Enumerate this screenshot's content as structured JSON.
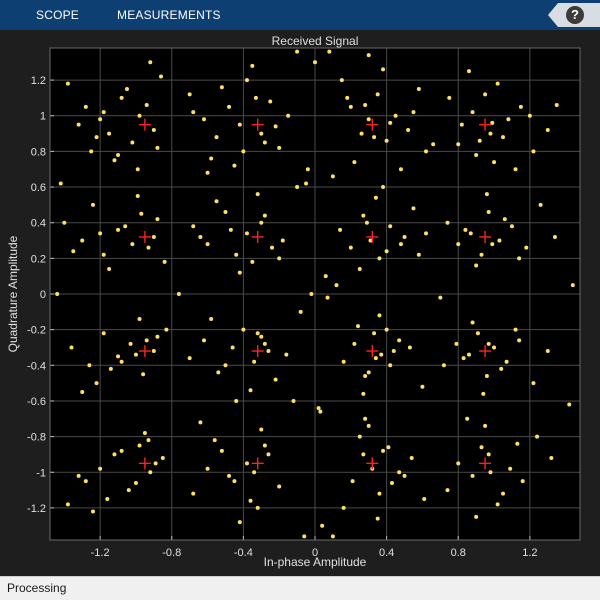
{
  "toolbar": {
    "tabs": [
      {
        "label": "SCOPE"
      },
      {
        "label": "MEASUREMENTS"
      }
    ],
    "help_label": "?",
    "help_icon": "help-icon"
  },
  "status": {
    "text": "Processing"
  },
  "colors": {
    "toolbar_bg": "#0e3f73",
    "plot_bg": "#000000",
    "figure_bg": "#1e1e1e",
    "grid": "#4a4a4a",
    "axis_text": "#e0e0e0",
    "points": "#ffe066",
    "reference": "#ff2020"
  },
  "chart_data": {
    "type": "scatter",
    "title": "Received Signal",
    "xlabel": "In-phase Amplitude",
    "ylabel": "Quadrature Amplitude",
    "xlim": [
      -1.48,
      1.48
    ],
    "ylim": [
      -1.38,
      1.38
    ],
    "xticks": [
      -1.2,
      -0.8,
      -0.4,
      0,
      0.4,
      0.8,
      1.2
    ],
    "yticks": [
      -1.2,
      -1,
      -0.8,
      -0.6,
      -0.4,
      -0.2,
      0,
      0.2,
      0.4,
      0.6,
      0.8,
      1,
      1.2
    ],
    "grid": true,
    "series": [
      {
        "role": "reference",
        "marker": "plus",
        "x": [
          -0.95,
          -0.32,
          0.32,
          0.95,
          -0.95,
          -0.32,
          0.32,
          0.95,
          -0.95,
          -0.32,
          0.32,
          0.95,
          -0.95,
          -0.32,
          0.32,
          0.95
        ],
        "y": [
          0.95,
          0.95,
          0.95,
          0.95,
          0.32,
          0.32,
          0.32,
          0.32,
          -0.32,
          -0.32,
          -0.32,
          -0.32,
          -0.95,
          -0.95,
          -0.95,
          -0.95
        ]
      },
      {
        "role": "received",
        "marker": "dot",
        "x": [
          -1.38,
          -1.28,
          -1.2,
          -1.15,
          -1.08,
          -1.02,
          -0.98,
          -0.9,
          -0.86,
          -1.1,
          -1.22,
          -0.94,
          -1.32,
          -1.05,
          -0.88,
          -1.18,
          -0.99,
          -1.25,
          -0.92,
          -1.12,
          -0.7,
          -0.62,
          -0.55,
          -0.48,
          -0.42,
          -0.38,
          -0.3,
          -0.25,
          -0.2,
          -0.15,
          -0.58,
          -0.35,
          -0.45,
          -0.28,
          -0.68,
          -0.52,
          -0.22,
          -0.4,
          -0.33,
          -0.6,
          0.15,
          0.2,
          0.26,
          0.3,
          0.35,
          0.4,
          0.45,
          0.52,
          0.58,
          0.62,
          0.22,
          0.38,
          0.28,
          0.48,
          0.33,
          0.55,
          0.42,
          0.18,
          0.66,
          0.3,
          0.75,
          0.82,
          0.88,
          0.92,
          0.98,
          1.02,
          1.08,
          1.15,
          1.22,
          1.3,
          0.86,
          1.0,
          0.95,
          1.12,
          0.8,
          1.2,
          0.9,
          1.05,
          1.35,
          0.99,
          -1.4,
          -1.3,
          -1.18,
          -1.1,
          -1.02,
          -0.97,
          -0.9,
          -0.84,
          -1.24,
          -0.93,
          -1.06,
          -1.15,
          -0.88,
          -1.35,
          -0.99,
          -1.2,
          -0.68,
          -0.6,
          -0.5,
          -0.44,
          -0.38,
          -0.3,
          -0.24,
          -0.18,
          -0.55,
          -0.35,
          -0.28,
          -0.42,
          -0.64,
          -0.32,
          -0.47,
          -0.2,
          0.14,
          0.2,
          0.27,
          0.31,
          0.36,
          0.42,
          0.48,
          0.55,
          0.62,
          0.25,
          0.34,
          0.4,
          0.29,
          0.5,
          0.38,
          0.58,
          0.74,
          0.8,
          0.87,
          0.93,
          0.97,
          1.03,
          1.1,
          1.18,
          1.26,
          1.34,
          0.9,
          0.96,
          1.06,
          0.84,
          1.14,
          0.99,
          -1.36,
          -1.26,
          -1.18,
          -1.1,
          -1.03,
          -0.96,
          -0.9,
          -0.83,
          -1.22,
          -0.94,
          -1.08,
          -0.98,
          -1.14,
          -0.88,
          -1.3,
          -1.0,
          -0.7,
          -0.62,
          -0.54,
          -0.46,
          -0.4,
          -0.34,
          -0.28,
          -0.22,
          -0.16,
          -0.58,
          -0.36,
          -0.3,
          -0.5,
          -0.26,
          -0.44,
          -0.32,
          0.16,
          0.22,
          0.28,
          0.33,
          0.37,
          0.42,
          0.47,
          0.53,
          0.6,
          0.24,
          0.3,
          0.36,
          0.44,
          0.27,
          0.34,
          0.4,
          0.72,
          0.79,
          0.86,
          0.91,
          0.96,
          1.0,
          1.07,
          1.14,
          1.22,
          1.3,
          0.88,
          0.94,
          1.04,
          0.83,
          1.12,
          0.97,
          -1.38,
          -1.28,
          -1.2,
          -1.12,
          -1.04,
          -0.98,
          -0.92,
          -0.85,
          -1.24,
          -0.95,
          -1.08,
          -1.0,
          -0.89,
          -1.16,
          -0.93,
          -1.32,
          -0.68,
          -0.6,
          -0.52,
          -0.45,
          -0.38,
          -0.32,
          -0.26,
          -0.2,
          -0.56,
          -0.34,
          -0.3,
          -0.42,
          -0.64,
          -0.28,
          -0.48,
          -0.36,
          0.16,
          0.21,
          0.27,
          0.32,
          0.36,
          0.41,
          0.47,
          0.54,
          0.61,
          0.25,
          0.3,
          0.35,
          0.43,
          0.28,
          0.38,
          0.5,
          0.74,
          0.8,
          0.88,
          0.93,
          0.97,
          1.02,
          1.09,
          1.16,
          1.24,
          1.32,
          0.9,
          0.95,
          1.05,
          0.85,
          1.13,
          0.98,
          -0.05,
          0.02,
          0.06,
          -0.08,
          0.1,
          -0.12,
          0.0,
          0.04,
          -0.02,
          0.08,
          -0.06,
          0.12,
          0.03,
          -0.1,
          0.07,
          -0.04,
          -1.42,
          1.42,
          -1.44,
          1.44,
          -0.76,
          0.7,
          -0.1,
          0.1
        ],
        "y": [
          1.18,
          1.05,
          0.98,
          0.9,
          1.1,
          0.85,
          1.0,
          0.92,
          1.22,
          0.78,
          0.88,
          1.06,
          0.95,
          1.15,
          0.82,
          1.02,
          0.7,
          0.8,
          1.3,
          0.75,
          1.12,
          0.98,
          0.88,
          1.05,
          0.95,
          1.2,
          0.9,
          1.08,
          0.82,
          1.0,
          0.76,
          1.28,
          0.72,
          0.85,
          1.02,
          1.16,
          0.94,
          0.8,
          1.1,
          0.68,
          1.2,
          1.05,
          0.9,
          0.98,
          1.12,
          0.86,
          1.0,
          0.92,
          1.15,
          0.8,
          0.74,
          1.26,
          1.06,
          0.7,
          0.88,
          1.02,
          0.96,
          1.1,
          0.84,
          1.34,
          1.1,
          0.95,
          1.02,
          0.86,
          0.9,
          1.18,
          0.98,
          1.05,
          0.8,
          0.92,
          1.25,
          0.74,
          1.12,
          0.7,
          0.84,
          1.0,
          0.78,
          0.88,
          1.06,
          0.96,
          0.4,
          0.3,
          0.22,
          0.36,
          0.28,
          0.45,
          0.32,
          0.18,
          0.5,
          0.26,
          0.38,
          0.14,
          0.42,
          0.24,
          0.55,
          0.34,
          0.38,
          0.28,
          0.46,
          0.22,
          0.34,
          0.4,
          0.26,
          0.3,
          0.52,
          0.18,
          0.44,
          0.12,
          0.32,
          0.56,
          0.36,
          0.2,
          0.36,
          0.26,
          0.44,
          0.3,
          0.2,
          0.38,
          0.28,
          0.48,
          0.34,
          0.14,
          0.54,
          0.24,
          0.4,
          0.32,
          0.6,
          0.22,
          0.4,
          0.28,
          0.34,
          0.22,
          0.46,
          0.3,
          0.38,
          0.26,
          0.5,
          0.32,
          0.16,
          0.56,
          0.42,
          0.36,
          0.2,
          0.28,
          -0.3,
          -0.4,
          -0.22,
          -0.35,
          -0.28,
          -0.45,
          -0.32,
          -0.2,
          -0.5,
          -0.26,
          -0.38,
          -0.14,
          -0.42,
          -0.24,
          -0.55,
          -0.34,
          -0.36,
          -0.26,
          -0.44,
          -0.3,
          -0.2,
          -0.38,
          -0.28,
          -0.48,
          -0.34,
          -0.14,
          -0.54,
          -0.24,
          -0.4,
          -0.32,
          -0.6,
          -0.22,
          -0.38,
          -0.28,
          -0.46,
          -0.22,
          -0.34,
          -0.4,
          -0.26,
          -0.3,
          -0.52,
          -0.18,
          -0.44,
          -0.12,
          -0.32,
          -0.56,
          -0.36,
          -0.2,
          -0.4,
          -0.28,
          -0.34,
          -0.22,
          -0.46,
          -0.3,
          -0.38,
          -0.26,
          -0.5,
          -0.32,
          -0.16,
          -0.56,
          -0.42,
          -0.36,
          -0.2,
          -0.28,
          -1.18,
          -1.05,
          -0.98,
          -0.9,
          -1.1,
          -0.85,
          -1.0,
          -0.92,
          -1.22,
          -0.78,
          -0.88,
          -1.06,
          -0.95,
          -1.15,
          -0.82,
          -1.02,
          -1.12,
          -0.98,
          -0.88,
          -1.05,
          -0.95,
          -1.2,
          -0.9,
          -1.08,
          -0.82,
          -1.0,
          -0.76,
          -1.28,
          -0.72,
          -0.85,
          -1.02,
          -1.16,
          -1.2,
          -1.05,
          -0.9,
          -0.98,
          -1.12,
          -0.86,
          -1.0,
          -0.92,
          -1.15,
          -0.8,
          -0.74,
          -1.26,
          -1.06,
          -0.7,
          -0.88,
          -1.02,
          -1.1,
          -0.95,
          -1.02,
          -0.86,
          -0.9,
          -1.18,
          -0.98,
          -1.05,
          -0.8,
          -0.92,
          -1.25,
          -0.74,
          -1.12,
          -0.7,
          -0.84,
          -1.0,
          0.62,
          -0.64,
          0.1,
          -0.1,
          0.66,
          -0.6,
          1.3,
          -1.3,
          0.0,
          1.36,
          -1.36,
          0.05,
          -0.66,
          0.6,
          -0.02,
          0.7,
          0.62,
          -0.62,
          0.0,
          0.05,
          0.0,
          -0.02,
          1.36,
          -1.36
        ]
      }
    ]
  }
}
